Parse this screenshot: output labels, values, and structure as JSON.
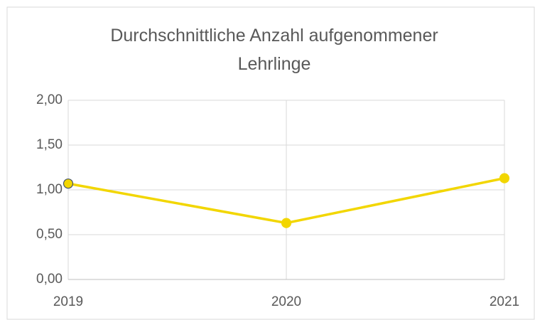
{
  "chart_data": {
    "type": "line",
    "title": "Durchschnittliche Anzahl aufgenommener Lehrlinge",
    "x": [
      2019,
      2020,
      2021
    ],
    "series": [
      {
        "name": "Lehrlinge",
        "color": "#f2d600",
        "values": [
          1.07,
          0.63,
          1.13
        ]
      }
    ],
    "xlim": [
      2019,
      2021
    ],
    "xticks": [
      2019,
      2020,
      2021
    ],
    "ylim": [
      0,
      2
    ],
    "yticks": [
      {
        "value": 0,
        "label": "0,00"
      },
      {
        "value": 0.5,
        "label": "0,50"
      },
      {
        "value": 1,
        "label": "1,00"
      },
      {
        "value": 1.5,
        "label": "1,50"
      },
      {
        "value": 2,
        "label": "2,00"
      }
    ],
    "grid": true
  }
}
